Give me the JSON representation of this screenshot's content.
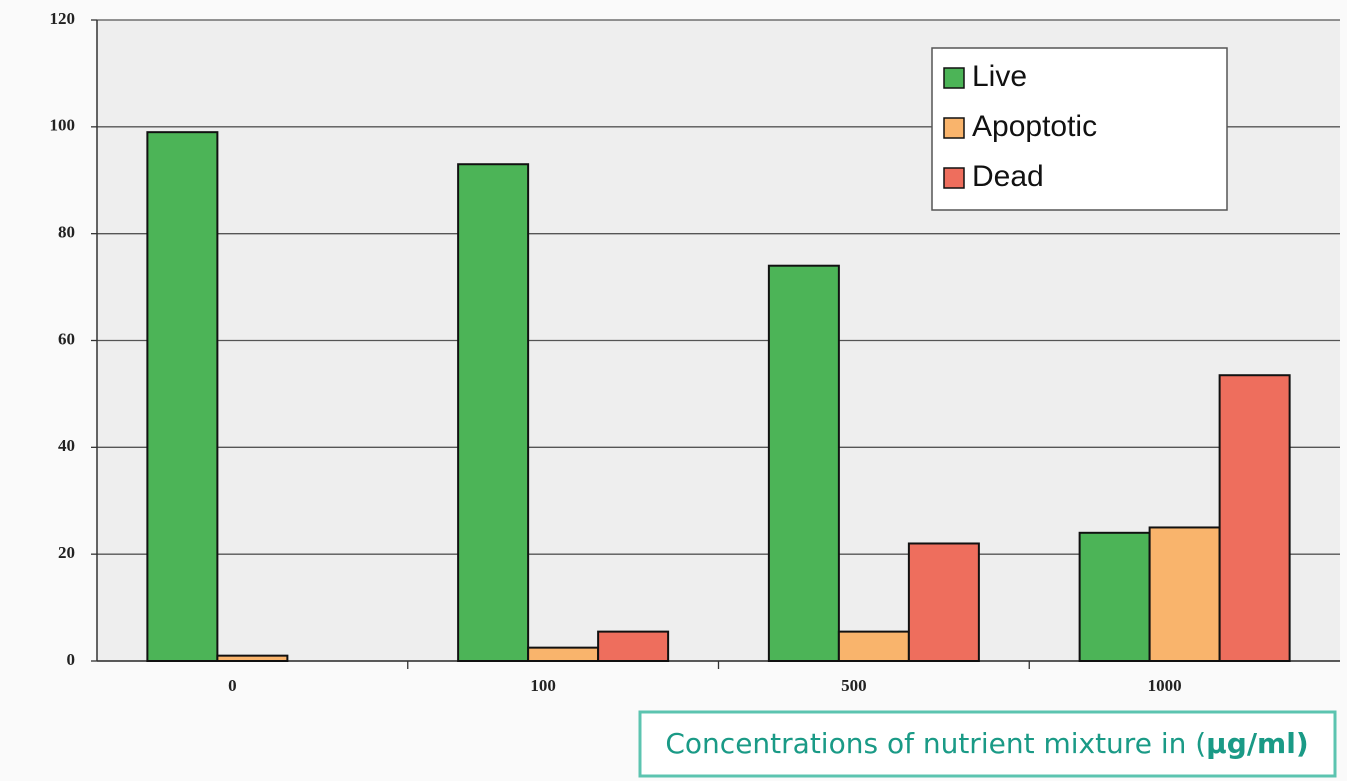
{
  "chart_data": {
    "type": "bar",
    "categories": [
      "0",
      "100",
      "500",
      "1000"
    ],
    "series": [
      {
        "name": "Live",
        "color": "#4cb457",
        "values": [
          99,
          93,
          74,
          24
        ]
      },
      {
        "name": "Apoptotic",
        "color": "#f9b46c",
        "values": [
          1,
          2.5,
          5.5,
          25
        ]
      },
      {
        "name": "Dead",
        "color": "#ee6e5d",
        "values": [
          0,
          5.5,
          22,
          53.5
        ]
      }
    ],
    "ylim": [
      0,
      120
    ],
    "yticks": [
      0,
      20,
      40,
      60,
      80,
      100,
      120
    ],
    "grid": true,
    "legend": "upper right",
    "xlabel": [
      "Concentrations of nutrient mixture in (",
      "µg/ml)"
    ]
  }
}
